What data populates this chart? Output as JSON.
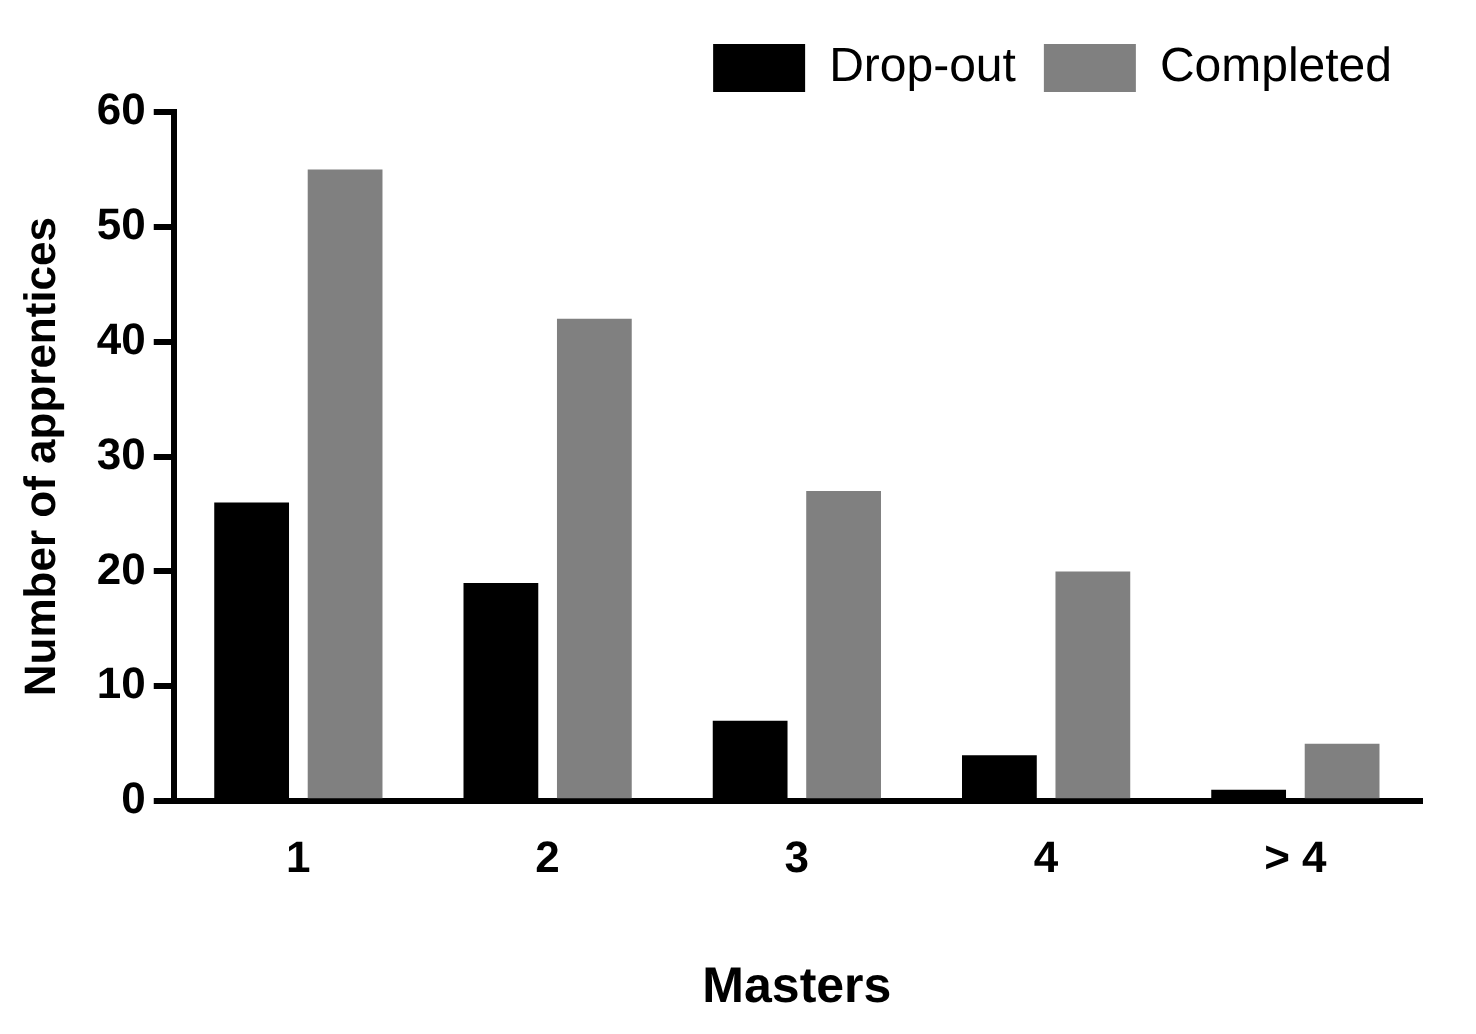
{
  "chart_data": {
    "type": "bar",
    "xlabel": "Masters",
    "ylabel": "Number of apprentices",
    "categories": [
      "1",
      "2",
      "3",
      "4",
      "> 4"
    ],
    "series": [
      {
        "name": "Drop-out",
        "color": "#000000",
        "values": [
          26,
          19,
          7,
          4,
          1
        ]
      },
      {
        "name": "Completed",
        "color": "#808080",
        "values": [
          55,
          42,
          27,
          20,
          5
        ]
      }
    ],
    "ylim": [
      0,
      60
    ],
    "yticks": [
      0,
      10,
      20,
      30,
      40,
      50,
      60
    ],
    "grid": false,
    "legend": "top right"
  }
}
